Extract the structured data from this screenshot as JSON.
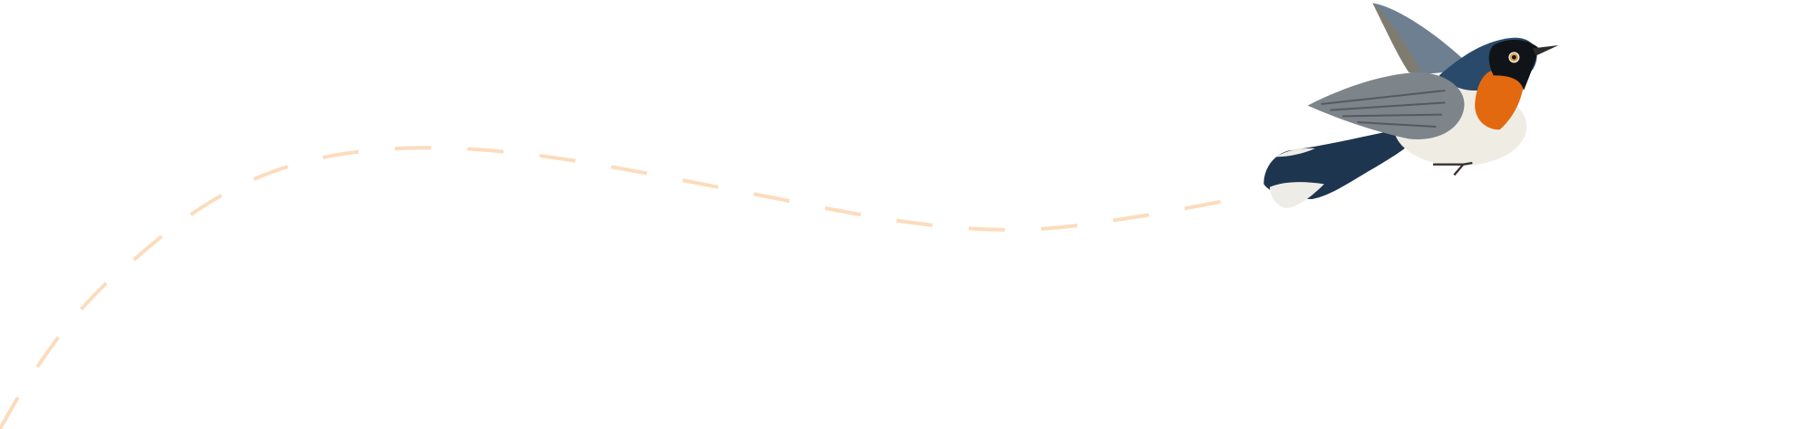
{
  "illustration": {
    "subject": "bird-in-flight",
    "colors": {
      "flight_path": "#fcdcbc",
      "bird_back": "#1e3550",
      "bird_throat": "#e2690f",
      "bird_belly": "#efece4",
      "bird_wing": "#7d848a"
    }
  }
}
